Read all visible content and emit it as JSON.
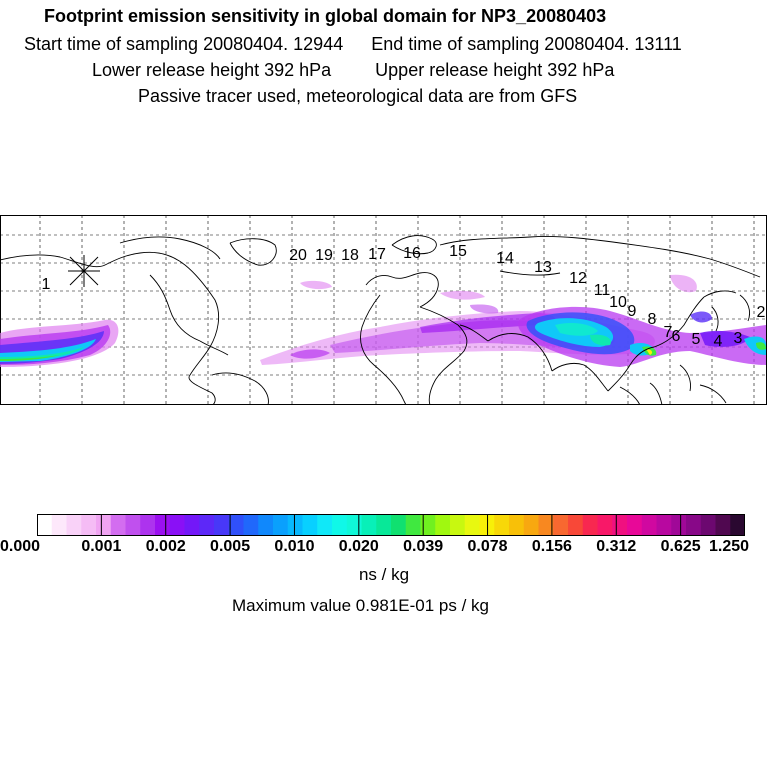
{
  "header": {
    "title": "Footprint emission sensitivity in global domain for NP3_20080403",
    "start_time": "Start time of sampling 20080404. 12944",
    "end_time": "End time of sampling 20080404. 13111",
    "lower_height": "Lower release height  392 hPa",
    "upper_height": "Upper release height  392 hPa",
    "tracer_note": "Passive tracer used, meteorological data are from GFS"
  },
  "map": {
    "trajectory_labels": [
      "1",
      "2",
      "3",
      "4",
      "5",
      "6",
      "7",
      "8",
      "9",
      "10",
      "11",
      "12",
      "13",
      "14",
      "15",
      "16",
      "17",
      "18",
      "19",
      "20"
    ]
  },
  "colorbar": {
    "ticks": [
      "0.000",
      "0.001",
      "0.002",
      "0.005",
      "0.010",
      "0.020",
      "0.039",
      "0.078",
      "0.156",
      "0.312",
      "0.625",
      "1.250"
    ],
    "colors": [
      "#ffffff",
      "#fde8fb",
      "#f9d2f8",
      "#f5bcf5",
      "#f0a4f2",
      "#d36df0",
      "#c050ee",
      "#ad33ee",
      "#9b10f0",
      "#8a10f6",
      "#7318f8",
      "#5d28f8",
      "#4838f8",
      "#3050fa",
      "#2068fb",
      "#1088fc",
      "#0aa0fd",
      "#08b8fe",
      "#08d0ff",
      "#10e8f8",
      "#10f8e8",
      "#10f8d8",
      "#08f0b8",
      "#08e898",
      "#10e070",
      "#40e840",
      "#70f020",
      "#a0f810",
      "#c8f810",
      "#e8f810",
      "#f8f008",
      "#f8d808",
      "#f8c008",
      "#f8a810",
      "#f88820",
      "#f86830",
      "#f84838",
      "#f82850",
      "#f81868",
      "#f01080",
      "#e80898",
      "#d008a0",
      "#b808a0",
      "#a00898",
      "#880888",
      "#6c0870",
      "#500850",
      "#2a0830"
    ],
    "units": "ns / kg",
    "max_value": "Maximum value  0.981E-01 ps / kg"
  }
}
